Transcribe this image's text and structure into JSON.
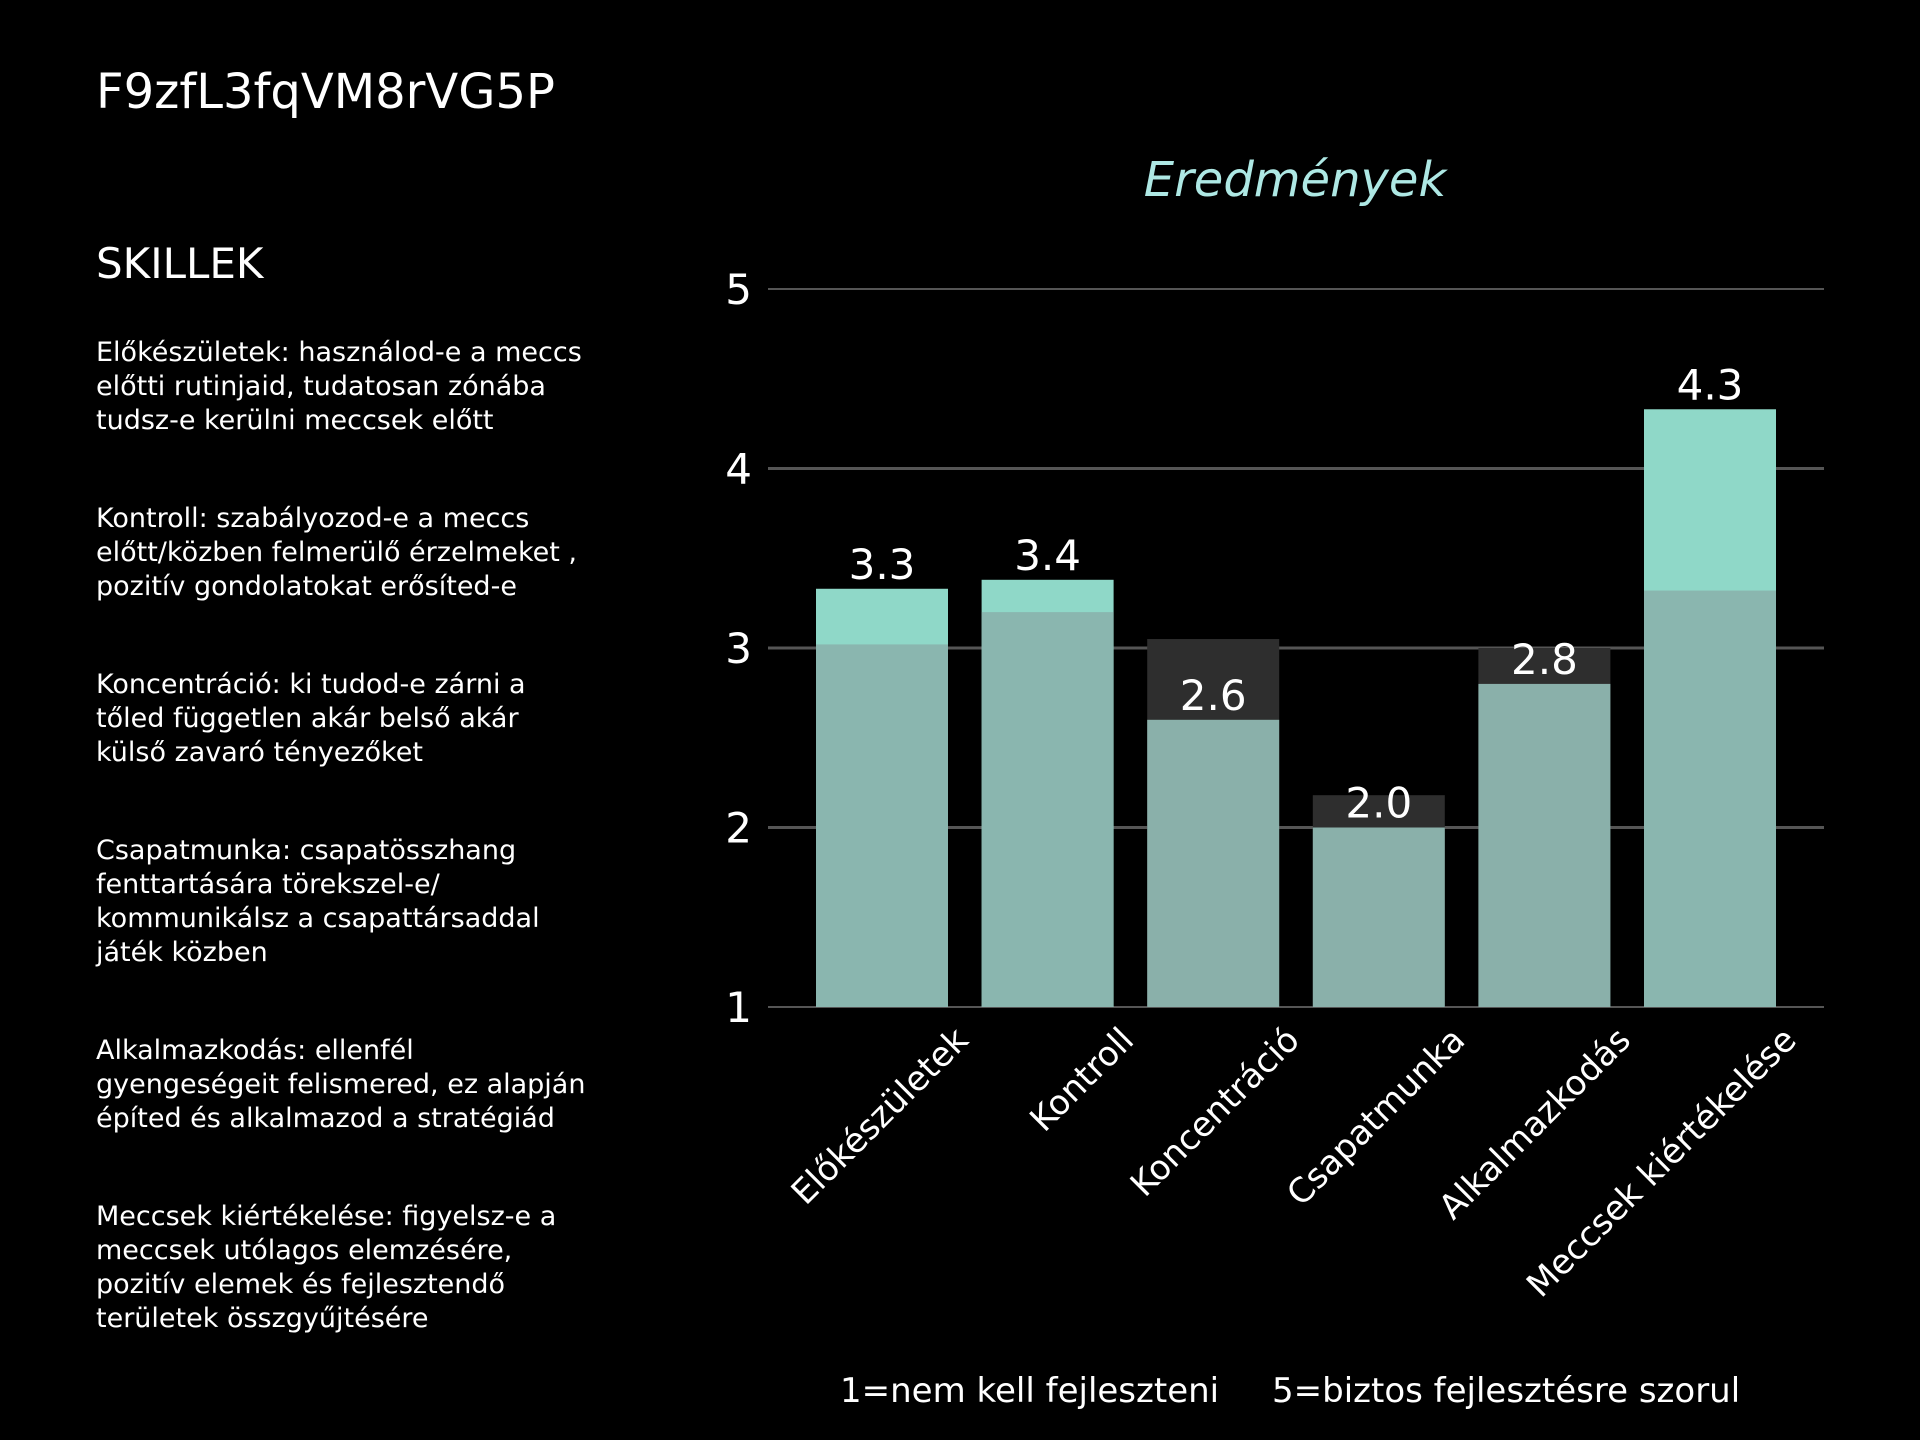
{
  "header": {
    "id_text": "F9zfL3fqVM8rVG5P"
  },
  "skills": {
    "heading": "SKILLEK",
    "items": [
      "Előkészületek: használod-e a  meccs\nelőtti rutinjaid, tudatosan zónába\ntudsz-e kerülni  meccsek előtt",
      "Kontroll: szabályozod-e a meccs\nelőtt/közben felmerülő érzelmeket ,\npozitív gondolatokat erősíted-e",
      "Koncentráció: ki tudod-e zárni a\ntőled független akár belső akár\nkülső zavaró tényezőket",
      "Csapatmunka: csapatösszhang\nfenttartására törekszel-e/\nkommunikálsz a csapattársaddal\njáték közben",
      "Alkalmazkodás: ellenfél\ngyengeségeit felismered, ez alapján\népíted és alkalmazod a stratégiád",
      "Meccsek kiértékelése: figyelsz-e a\nmeccsek utólagos elemzésére,\npozitív elemek és fejlesztendő\nterületek összgyűjtésére"
    ]
  },
  "legend_note": {
    "low": "1=nem kell fejleszteni",
    "high": "5=biztos fejlesztésre szorul"
  },
  "colors": {
    "background": "#000000",
    "current_bar": "#8fd8c8",
    "previous_bar": "#8ab0aa",
    "previous_bar_dark": "#2e2e2e",
    "grid": "#555555",
    "title": "#aee8e4",
    "text": "#ffffff"
  },
  "chart_data": {
    "type": "bar",
    "title": "Eredmények",
    "categories": [
      "Előkészületek",
      "Kontroll",
      "Koncentráció",
      "Csapatmunka",
      "Alkalmazkodás",
      "Meccsek kiértékelése"
    ],
    "series": [
      {
        "values": [
          3.33,
          3.38,
          2.6,
          2.0,
          2.8,
          4.33
        ]
      },
      {
        "values": [
          3.02,
          3.2,
          3.05,
          2.18,
          3.0,
          3.32
        ]
      }
    ],
    "value_labels": [
      "3.3",
      "3.4",
      "2.6",
      "2.0",
      "2.8",
      "4.3"
    ],
    "yticks": [
      "1",
      "2",
      "3",
      "4",
      "5"
    ],
    "ylim": [
      1,
      5
    ],
    "grid": true,
    "xlabel": "",
    "ylabel": ""
  }
}
